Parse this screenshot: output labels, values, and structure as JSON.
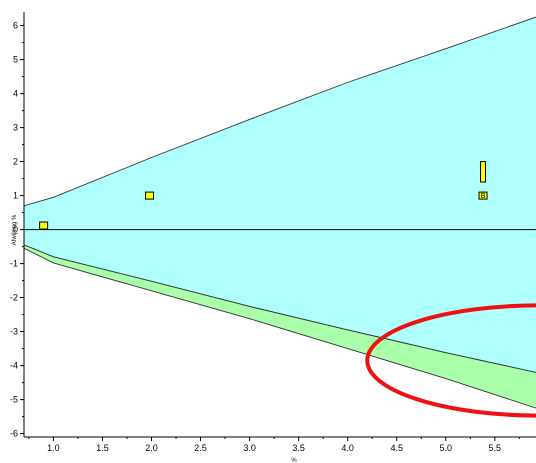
{
  "chart_data": {
    "type": "area",
    "title": "",
    "xlabel": "%",
    "ylabel": "Afwijking %",
    "xlim": [
      0.7,
      5.92
    ],
    "ylim": [
      -6.1,
      6.4
    ],
    "grid": false,
    "x_ticks": [
      "1.0",
      "1.5",
      "2.0",
      "2.5",
      "3.0",
      "3.5",
      "4.0",
      "4.5",
      "5.0",
      "5.5"
    ],
    "y_ticks": [
      "6",
      "5",
      "4",
      "3",
      "2",
      "1",
      "0",
      "-1",
      "-2",
      "-3",
      "-4",
      "-5",
      "-6"
    ],
    "bands": [
      {
        "fill": "#b0ffff",
        "upper": {
          "x": [
            0.7,
            1.0,
            2.0,
            3.0,
            4.0,
            5.0,
            5.92
          ],
          "y": [
            0.7,
            0.95,
            2.12,
            3.24,
            4.33,
            5.32,
            6.25
          ]
        },
        "lower": {
          "x": [
            0.7,
            1.0,
            2.0,
            3.0,
            4.0,
            5.0,
            5.92
          ],
          "y": [
            -0.45,
            -0.8,
            -1.52,
            -2.26,
            -2.95,
            -3.62,
            -4.2
          ]
        }
      },
      {
        "fill": "#aaffaa",
        "upper": {
          "x": [
            0.7,
            1.0,
            2.0,
            3.0,
            4.0,
            5.0,
            5.92
          ],
          "y": [
            -0.45,
            -0.8,
            -1.52,
            -2.26,
            -2.95,
            -3.62,
            -4.2
          ]
        },
        "lower": {
          "x": [
            0.7,
            1.0,
            2.0,
            3.0,
            4.0,
            5.0,
            5.92
          ],
          "y": [
            -0.55,
            -0.98,
            -1.8,
            -2.62,
            -3.5,
            -4.38,
            -5.25
          ]
        }
      }
    ],
    "points": [
      {
        "x": 0.9,
        "y": 0.12,
        "label": ""
      },
      {
        "x": 1.98,
        "y": 1.0,
        "label": ""
      },
      {
        "x": 5.38,
        "y": 1.0,
        "label": "B"
      }
    ],
    "bars": [
      {
        "x": 5.38,
        "y0": 1.4,
        "y1": 2.0
      }
    ],
    "colors": {
      "marker_fill": "#ffff00",
      "highlight": "#ee1111",
      "band_line": "#333333"
    },
    "annotation": {
      "type": "ellipse",
      "cx": 5.95,
      "cy": -3.85,
      "rx": 1.75,
      "ry": 1.62,
      "color": "#ee1111"
    }
  }
}
